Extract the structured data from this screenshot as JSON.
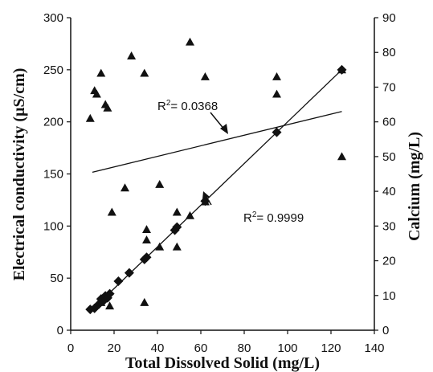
{
  "chart_data": {
    "type": "scatter",
    "title": "",
    "xlabel": "Total Dissolved Solid (mg/L)",
    "ylabel_left": "Electrical conductivity (µS/cm)",
    "ylabel_right": "Calcium (mg/L)",
    "xlim": [
      0,
      140
    ],
    "ylim_left": [
      0,
      300
    ],
    "ylim_right": [
      0,
      90
    ],
    "x_ticks": [
      "0",
      "20",
      "40",
      "60",
      "80",
      "100",
      "120",
      "140"
    ],
    "y_ticks_left": [
      "0",
      "50",
      "100",
      "150",
      "200",
      "250",
      "300"
    ],
    "y_ticks_right": [
      "0",
      "10",
      "20",
      "30",
      "40",
      "50",
      "60",
      "70",
      "80",
      "90"
    ],
    "grid": false,
    "legend": "none",
    "series": [
      {
        "axis": "left",
        "marker": "diamond",
        "points": [
          [
            9,
            20
          ],
          [
            11,
            21
          ],
          [
            13,
            25
          ],
          [
            14,
            30
          ],
          [
            15,
            28
          ],
          [
            16,
            33
          ],
          [
            17,
            31
          ],
          [
            18,
            35
          ],
          [
            22,
            47
          ],
          [
            27,
            55
          ],
          [
            34,
            68
          ],
          [
            35,
            70
          ],
          [
            48,
            96
          ],
          [
            49,
            99
          ],
          [
            62,
            124
          ],
          [
            95,
            190
          ],
          [
            125,
            250
          ]
        ]
      },
      {
        "axis": "right",
        "marker": "triangle",
        "points": [
          [
            9,
            61
          ],
          [
            11,
            69
          ],
          [
            12,
            68
          ],
          [
            14,
            74
          ],
          [
            16,
            65
          ],
          [
            17,
            64
          ],
          [
            19,
            34
          ],
          [
            18,
            7
          ],
          [
            14,
            8
          ],
          [
            25,
            41
          ],
          [
            28,
            79
          ],
          [
            34,
            8
          ],
          [
            34,
            74
          ],
          [
            35,
            26
          ],
          [
            35,
            29
          ],
          [
            41,
            42
          ],
          [
            41,
            24
          ],
          [
            49,
            34
          ],
          [
            49,
            24
          ],
          [
            55,
            83
          ],
          [
            55,
            33
          ],
          [
            62,
            73
          ],
          [
            62,
            37
          ],
          [
            95,
            73
          ],
          [
            95,
            68
          ],
          [
            125,
            75
          ],
          [
            125,
            50
          ]
        ]
      }
    ],
    "trendlines": [
      {
        "axis": "left",
        "from": [
          10,
          20
        ],
        "to": [
          125,
          250
        ],
        "label": "R² = 0.9999"
      },
      {
        "axis": "right",
        "from": [
          10,
          45.5
        ],
        "to": [
          125,
          63
        ],
        "label": "R² = 0.0368"
      }
    ]
  },
  "annotations": {
    "r2_calcium": "R",
    "r2_calcium_sup": "2",
    "r2_calcium_value": "= 0.0368",
    "r2_ec": "R",
    "r2_ec_sup": "2",
    "r2_ec_value": "= 0.9999"
  },
  "colors": {
    "axis": "#111111",
    "marker": "#111111"
  }
}
